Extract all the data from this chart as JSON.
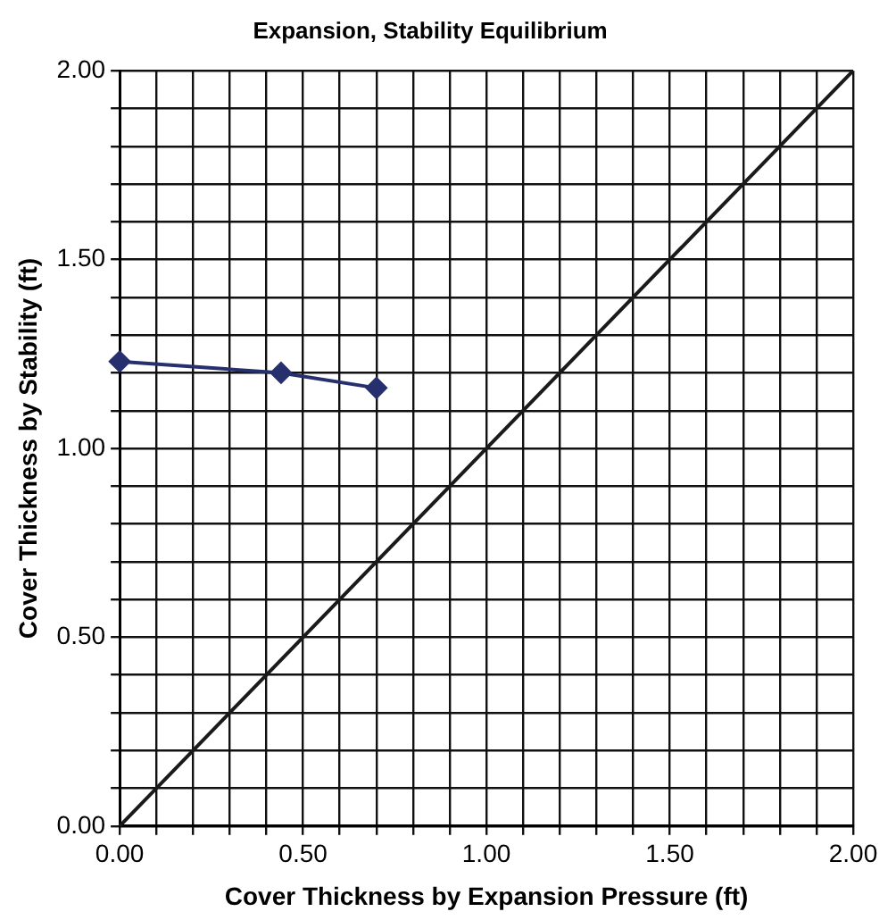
{
  "chart_data": {
    "type": "line",
    "title": "Expansion, Stability Equilibrium",
    "xlabel": "Cover Thickness by Expansion Pressure (ft)",
    "ylabel": "Cover Thickness by Stability (ft)",
    "series": [
      {
        "color": "#27306e",
        "x": [
          0,
          0.44,
          0.7
        ],
        "values": [
          1.23,
          1.2,
          1.16
        ],
        "marker": "diamond"
      },
      {
        "color": "#1a1a1a",
        "x": [
          0,
          2
        ],
        "values": [
          0,
          2
        ],
        "marker": "none"
      }
    ],
    "xlim": [
      0,
      2
    ],
    "ylim": [
      0,
      2
    ],
    "xticks": [
      {
        "value": 0,
        "label": "0.00"
      },
      {
        "value": 0.1,
        "label": null
      },
      {
        "value": 0.2,
        "label": null
      },
      {
        "value": 0.3,
        "label": null
      },
      {
        "value": 0.4,
        "label": null
      },
      {
        "value": 0.5,
        "label": "0.50"
      },
      {
        "value": 0.6,
        "label": null
      },
      {
        "value": 0.7,
        "label": null
      },
      {
        "value": 0.8,
        "label": null
      },
      {
        "value": 0.9,
        "label": null
      },
      {
        "value": 1,
        "label": "1.00"
      },
      {
        "value": 1.1,
        "label": null
      },
      {
        "value": 1.2,
        "label": null
      },
      {
        "value": 1.3,
        "label": null
      },
      {
        "value": 1.4,
        "label": null
      },
      {
        "value": 1.5,
        "label": "1.50"
      },
      {
        "value": 1.6,
        "label": null
      },
      {
        "value": 1.7,
        "label": null
      },
      {
        "value": 1.8,
        "label": null
      },
      {
        "value": 1.9,
        "label": null
      },
      {
        "value": 2,
        "label": "2.00"
      }
    ],
    "yticks": [
      {
        "value": 0,
        "label": "0.00"
      },
      {
        "value": 0.1,
        "label": null
      },
      {
        "value": 0.2,
        "label": null
      },
      {
        "value": 0.3,
        "label": null
      },
      {
        "value": 0.4,
        "label": null
      },
      {
        "value": 0.5,
        "label": "0.50"
      },
      {
        "value": 0.6,
        "label": null
      },
      {
        "value": 0.7,
        "label": null
      },
      {
        "value": 0.8,
        "label": null
      },
      {
        "value": 0.9,
        "label": null
      },
      {
        "value": 1,
        "label": "1.00"
      },
      {
        "value": 1.1,
        "label": null
      },
      {
        "value": 1.2,
        "label": null
      },
      {
        "value": 1.3,
        "label": null
      },
      {
        "value": 1.4,
        "label": null
      },
      {
        "value": 1.5,
        "label": "1.50"
      },
      {
        "value": 1.6,
        "label": null
      },
      {
        "value": 1.7,
        "label": null
      },
      {
        "value": 1.8,
        "label": null
      },
      {
        "value": 1.9,
        "label": null
      },
      {
        "value": 2,
        "label": "2.00"
      }
    ],
    "grid": true,
    "legend": false
  }
}
